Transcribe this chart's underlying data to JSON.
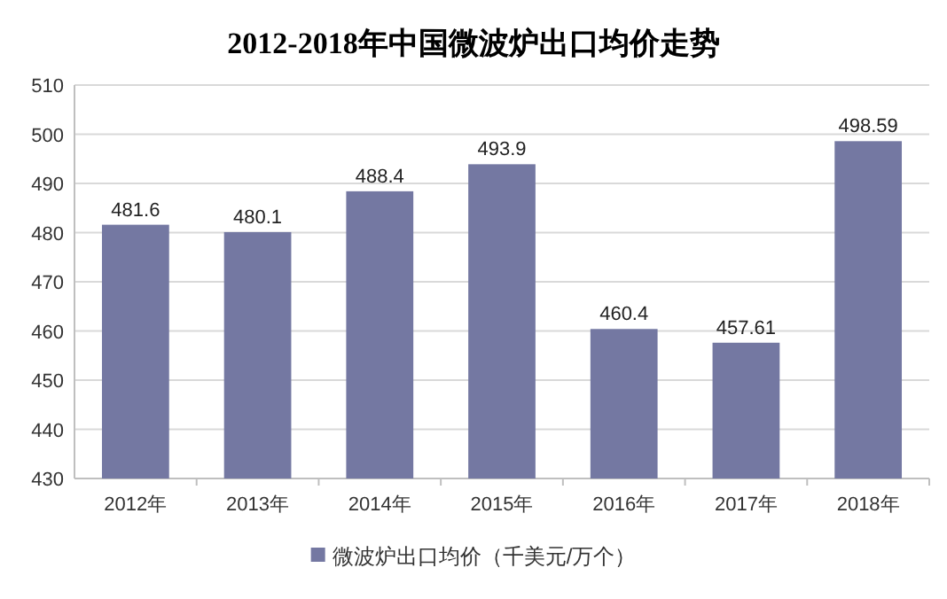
{
  "chart_data": {
    "type": "bar",
    "title": "2012-2018年中国微波炉出口均价走势",
    "categories": [
      "2012年",
      "2013年",
      "2014年",
      "2015年",
      "2016年",
      "2017年",
      "2018年"
    ],
    "series": [
      {
        "name": "微波炉出口均价（千美元/万个）",
        "color": "#7478a2",
        "values": [
          481.6,
          480.1,
          488.4,
          493.9,
          460.4,
          457.61,
          498.59
        ]
      }
    ],
    "ylim": [
      430,
      510
    ],
    "yticks": [
      430,
      440,
      450,
      460,
      470,
      480,
      490,
      500,
      510
    ],
    "grid": "y",
    "legend": "bottom",
    "data_labels": true
  }
}
